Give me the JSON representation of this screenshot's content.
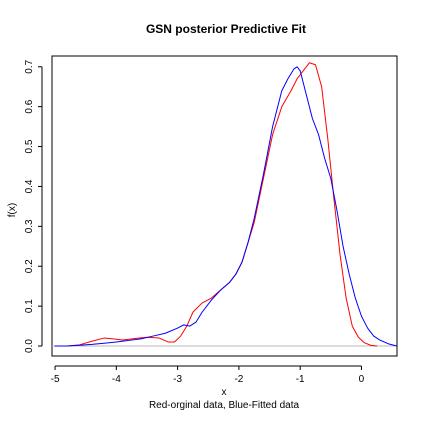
{
  "chart_data": {
    "type": "line",
    "title": "GSN posterior Predictive Fit",
    "xlabel": "x",
    "subtitle": "Red-orginal data, Blue-Fitted data",
    "ylabel": "f(x)",
    "xlim": [
      -5.05,
      0.58
    ],
    "ylim": [
      -0.025,
      0.727
    ],
    "x_ticks": [
      -5,
      -4,
      -3,
      -2,
      -1,
      0
    ],
    "y_ticks": [
      0.0,
      0.1,
      0.2,
      0.3,
      0.4,
      0.5,
      0.6,
      0.7
    ],
    "x_tick_labels": [
      "-5",
      "-4",
      "-3",
      "-2",
      "-1",
      "0"
    ],
    "y_tick_labels": [
      "0.0",
      "0.1",
      "0.2",
      "0.3",
      "0.4",
      "0.5",
      "0.6",
      "0.7"
    ],
    "baseline": 0,
    "baseline_color": "#b8b8b8",
    "grid": false,
    "series": [
      {
        "color": "#ff0000",
        "x": [
          -5.0,
          -4.8,
          -4.6,
          -4.4,
          -4.2,
          -4.05,
          -3.9,
          -3.7,
          -3.5,
          -3.3,
          -3.15,
          -3.05,
          -2.95,
          -2.85,
          -2.75,
          -2.6,
          -2.45,
          -2.3,
          -2.15,
          -2.05,
          -1.95,
          -1.85,
          -1.75,
          -1.6,
          -1.45,
          -1.3,
          -1.15,
          -1.05,
          -0.95,
          -0.85,
          -0.75,
          -0.65,
          -0.55,
          -0.45,
          -0.35,
          -0.25,
          -0.15,
          -0.05,
          0.05,
          0.15,
          0.25
        ],
        "y": [
          0.0,
          0.0,
          0.003,
          0.012,
          0.02,
          0.018,
          0.015,
          0.019,
          0.022,
          0.02,
          0.01,
          0.01,
          0.025,
          0.05,
          0.085,
          0.108,
          0.12,
          0.14,
          0.16,
          0.18,
          0.21,
          0.26,
          0.31,
          0.42,
          0.53,
          0.6,
          0.64,
          0.67,
          0.69,
          0.71,
          0.705,
          0.65,
          0.52,
          0.37,
          0.23,
          0.12,
          0.05,
          0.022,
          0.008,
          0.002,
          0.0
        ]
      },
      {
        "color": "#0000ff",
        "x": [
          -5.0,
          -4.8,
          -4.6,
          -4.4,
          -4.2,
          -4.0,
          -3.8,
          -3.6,
          -3.4,
          -3.2,
          -3.0,
          -2.9,
          -2.8,
          -2.7,
          -2.6,
          -2.45,
          -2.3,
          -2.15,
          -2.05,
          -1.95,
          -1.85,
          -1.75,
          -1.6,
          -1.45,
          -1.3,
          -1.2,
          -1.1,
          -1.05,
          -1.0,
          -0.9,
          -0.8,
          -0.7,
          -0.6,
          -0.5,
          -0.4,
          -0.3,
          -0.2,
          -0.1,
          0.0,
          0.1,
          0.2,
          0.3,
          0.45,
          0.58
        ],
        "y": [
          0.0,
          0.0,
          0.002,
          0.004,
          0.007,
          0.01,
          0.014,
          0.018,
          0.025,
          0.032,
          0.045,
          0.053,
          0.05,
          0.06,
          0.085,
          0.115,
          0.14,
          0.16,
          0.18,
          0.21,
          0.26,
          0.32,
          0.43,
          0.55,
          0.64,
          0.67,
          0.695,
          0.7,
          0.69,
          0.63,
          0.57,
          0.53,
          0.47,
          0.42,
          0.34,
          0.25,
          0.18,
          0.12,
          0.075,
          0.045,
          0.025,
          0.015,
          0.005,
          0.0
        ]
      }
    ]
  }
}
